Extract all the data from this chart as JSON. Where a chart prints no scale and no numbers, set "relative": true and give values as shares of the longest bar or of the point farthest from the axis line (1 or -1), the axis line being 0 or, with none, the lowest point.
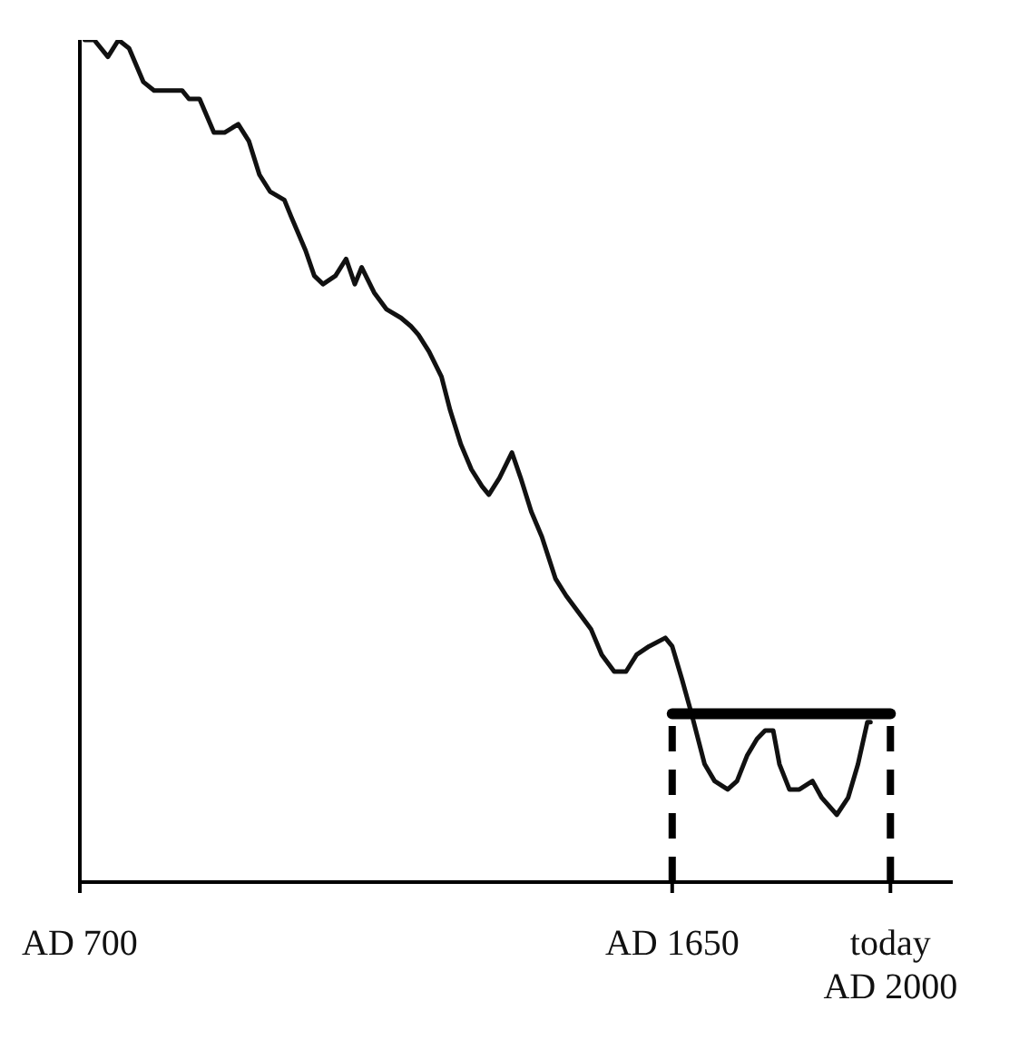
{
  "chart_data": {
    "type": "line",
    "relative": true,
    "xlim": [
      "0700",
      "2100"
    ],
    "xticks": [
      {
        "value": "0700",
        "label": "AD 700"
      },
      {
        "value": "1650",
        "label": "AD 1650"
      },
      {
        "value": "2000",
        "label": "today\nAD 2000"
      }
    ],
    "series": [
      {
        "color": "#111111",
        "x": [
          "0708",
          "0723",
          "0745",
          "0762",
          "0779",
          "0802",
          "0819",
          "0841",
          "0864",
          "0875",
          "0892",
          "0915",
          "0932",
          "0954",
          "0971",
          "0988",
          "1005",
          "1028",
          "1039",
          "1062",
          "1076",
          "1090",
          "1110",
          "1127",
          "1141",
          "1152",
          "1172",
          "1192",
          "1215",
          "1231",
          "1243",
          "1260",
          "1280",
          "1294",
          "1311",
          "1328",
          "1345",
          "1356",
          "1373",
          "1393",
          "1407",
          "1424",
          "1441",
          "1463",
          "1480",
          "1500",
          "1520",
          "1537",
          "1557",
          "1576",
          "1593",
          "1613",
          "1639",
          "1650",
          "1666",
          "1681",
          "1702",
          "1718",
          "1739",
          "1754",
          "1770",
          "1786",
          "1799",
          "1812",
          "1822",
          "1838",
          "1854",
          "1875",
          "1890",
          "1914",
          "1932",
          "1948",
          "1963",
          "1968"
        ],
        "values": [
          1.0,
          1.0,
          0.98,
          1.0,
          0.99,
          0.95,
          0.94,
          0.94,
          0.94,
          0.93,
          0.93,
          0.89,
          0.89,
          0.9,
          0.88,
          0.84,
          0.82,
          0.81,
          0.79,
          0.75,
          0.72,
          0.71,
          0.72,
          0.74,
          0.71,
          0.73,
          0.7,
          0.68,
          0.67,
          0.66,
          0.65,
          0.63,
          0.6,
          0.56,
          0.52,
          0.49,
          0.47,
          0.46,
          0.48,
          0.51,
          0.48,
          0.44,
          0.41,
          0.36,
          0.34,
          0.32,
          0.3,
          0.27,
          0.25,
          0.25,
          0.27,
          0.28,
          0.29,
          0.28,
          0.24,
          0.2,
          0.14,
          0.12,
          0.11,
          0.12,
          0.15,
          0.17,
          0.18,
          0.18,
          0.14,
          0.11,
          0.11,
          0.12,
          0.1,
          0.08,
          0.1,
          0.14,
          0.19,
          0.19
        ]
      },
      {
        "color": "#000000",
        "x": [
          "1650",
          "2000"
        ],
        "values": [
          0.2,
          0.2
        ]
      }
    ],
    "ref_lines": [
      {
        "axis": "x",
        "value": "1650",
        "line_style": "dashed",
        "color": "#000000"
      },
      {
        "axis": "x",
        "value": "2000",
        "line_style": "dashed",
        "color": "#000000"
      }
    ],
    "grid": false,
    "legend": false,
    "marker": "none",
    "line_style": "solid"
  }
}
